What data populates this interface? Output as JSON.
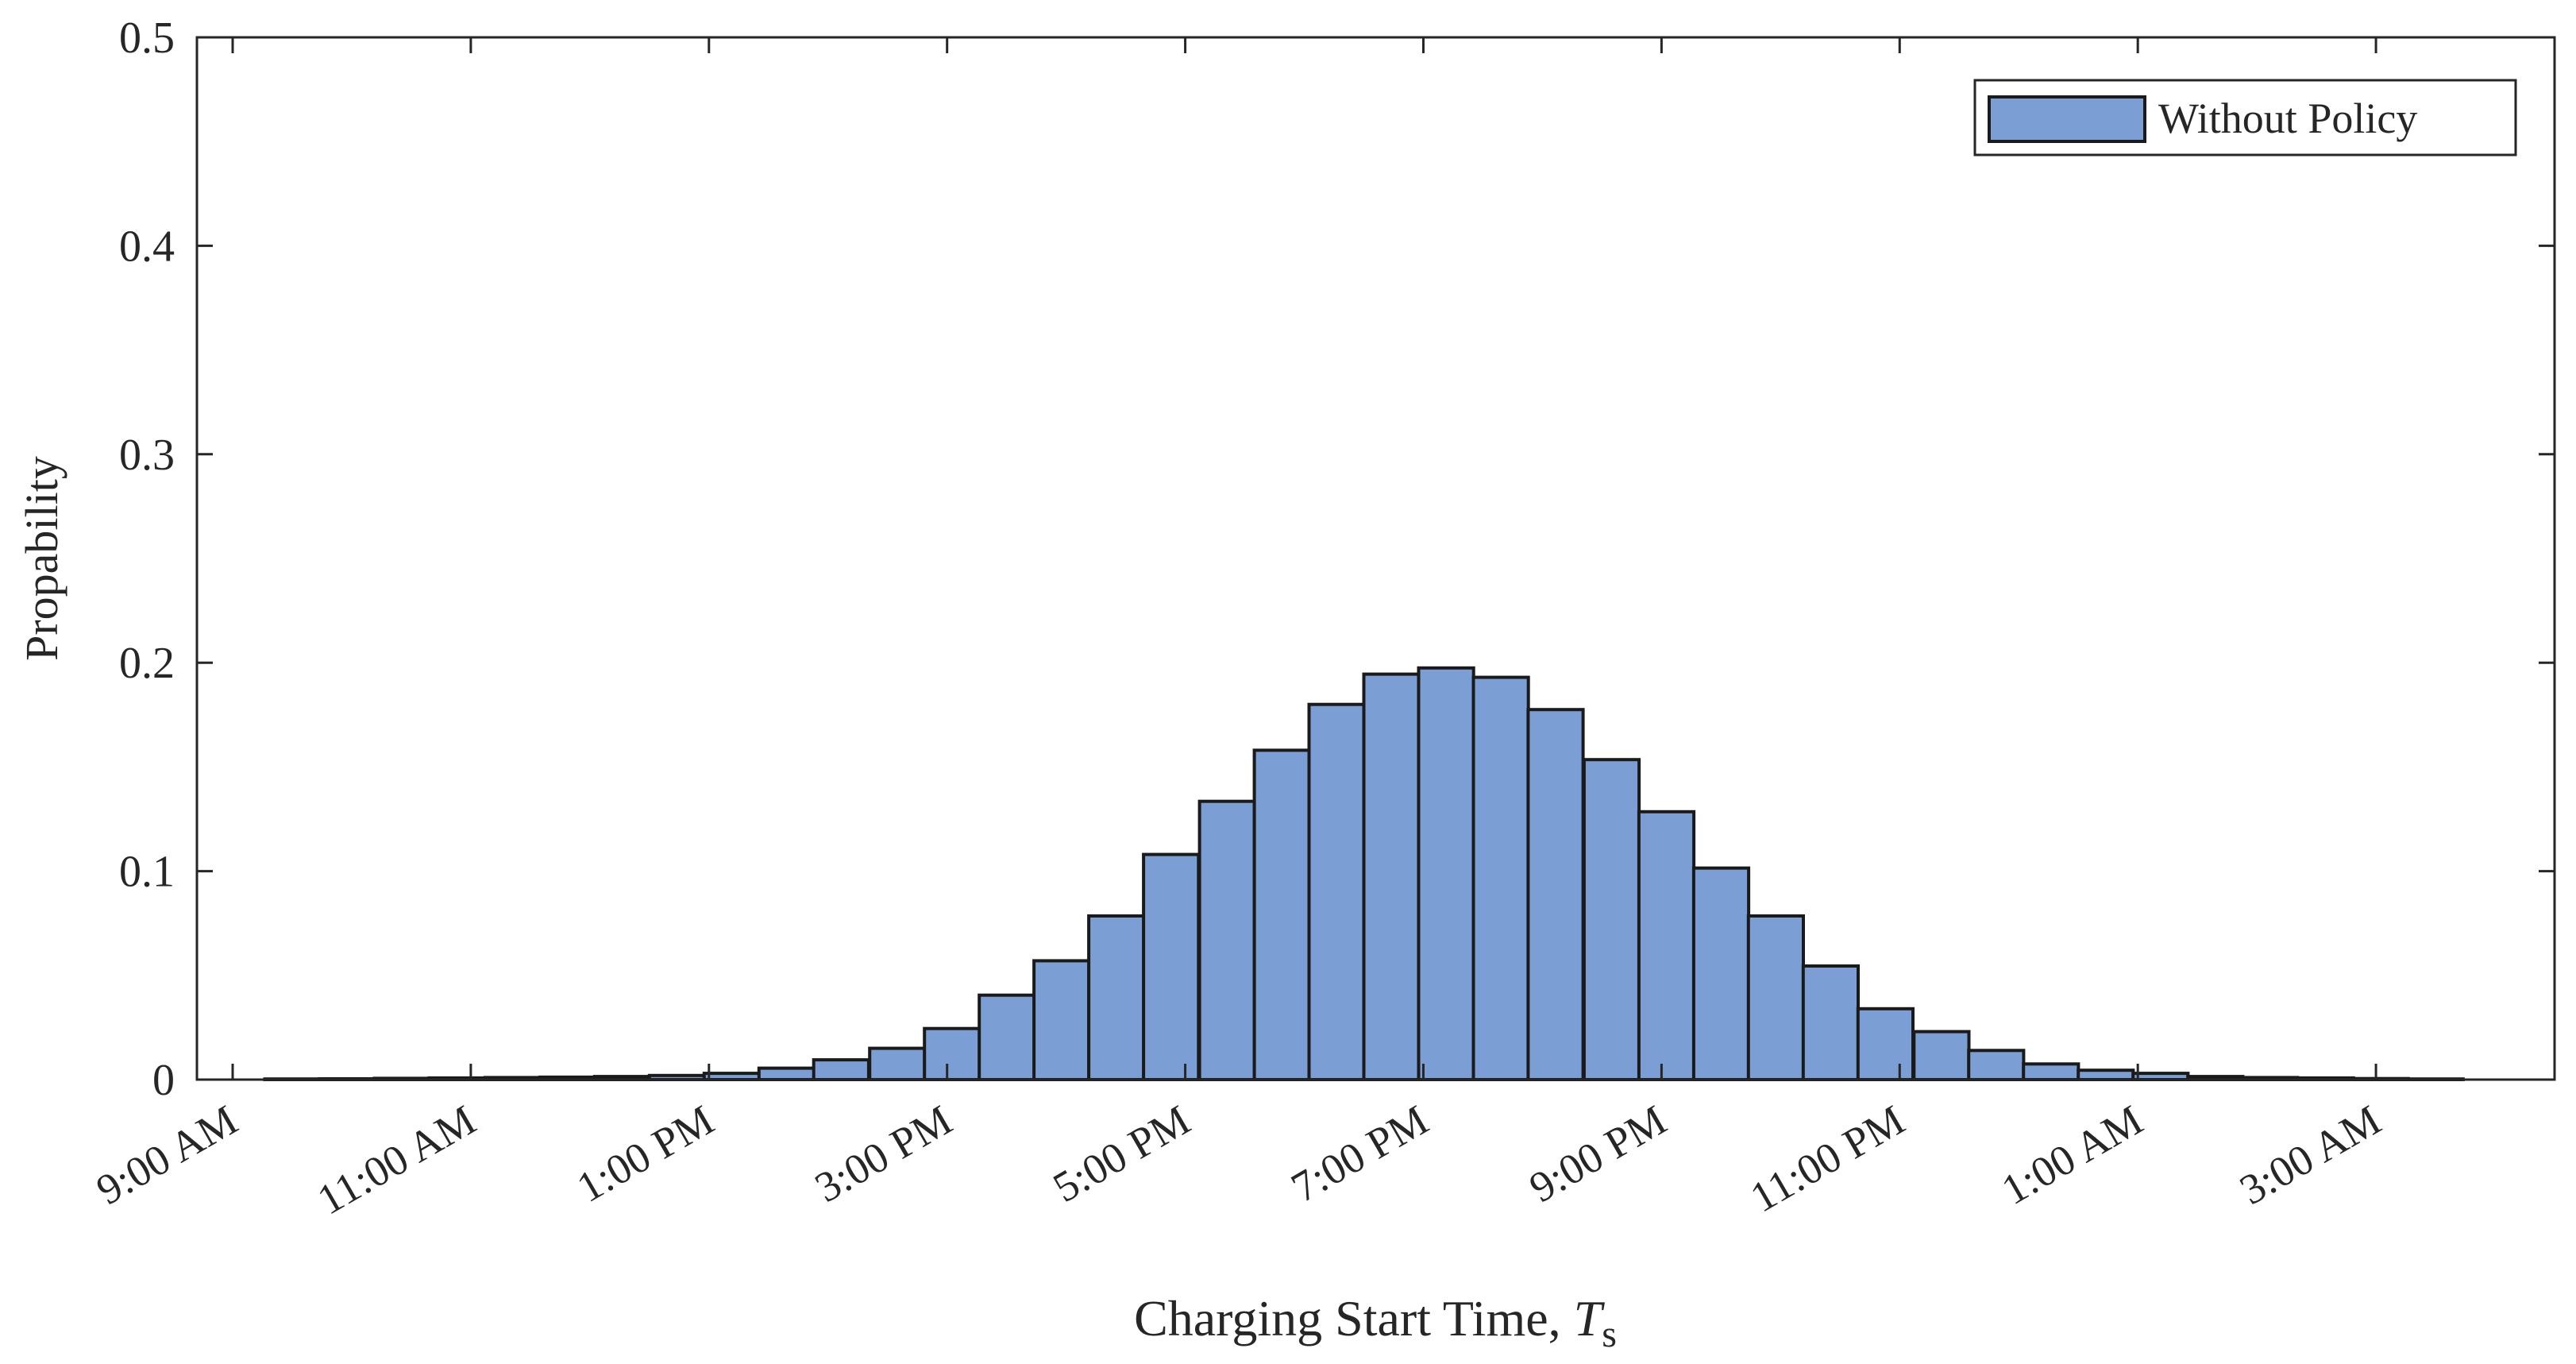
{
  "chart_data": {
    "type": "bar",
    "title": "",
    "xlabel": "Charging Start Time, ",
    "xlabel_symbol": "T",
    "xlabel_subscript": "s",
    "ylabel": "Propability",
    "xlim_hours": [
      8.7,
      28.5
    ],
    "ylim": [
      0,
      0.5
    ],
    "yticks": [
      0,
      0.1,
      0.2,
      0.3,
      0.4,
      0.5
    ],
    "ytick_labels": [
      "0",
      "0.1",
      "0.2",
      "0.3",
      "0.4",
      "0.5"
    ],
    "xticks_hours": [
      9,
      11,
      13,
      15,
      17,
      19,
      21,
      23,
      25,
      27
    ],
    "xtick_labels": [
      "9:00 AM",
      "11:00 AM",
      "1:00 PM",
      "3:00 PM",
      "5:00 PM",
      "7:00 PM",
      "9:00 PM",
      "11:00 PM",
      "1:00 AM",
      "3:00 AM"
    ],
    "grid": false,
    "legend_position": "top-right",
    "bar_color": "#7b9fd4",
    "edge_color": "#1a1a1a",
    "series": [
      {
        "name": "Without Policy",
        "bin_width_hours": 0.4615,
        "bin_starts_hours": [
          9.27,
          9.73,
          10.19,
          10.65,
          11.12,
          11.58,
          12.04,
          12.5,
          12.96,
          13.42,
          13.88,
          14.35,
          14.81,
          15.27,
          15.73,
          16.19,
          16.65,
          17.12,
          17.58,
          18.04,
          18.5,
          18.96,
          19.42,
          19.88,
          20.35,
          20.81,
          21.27,
          21.73,
          22.19,
          22.65,
          23.12,
          23.58,
          24.04,
          24.5,
          24.96,
          25.42,
          25.88,
          26.35,
          26.81,
          27.27
        ],
        "values": [
          0.0003,
          0.0004,
          0.0006,
          0.0008,
          0.001,
          0.0012,
          0.0015,
          0.002,
          0.003,
          0.0055,
          0.0095,
          0.015,
          0.0245,
          0.0405,
          0.057,
          0.0785,
          0.108,
          0.1335,
          0.158,
          0.18,
          0.1945,
          0.1975,
          0.193,
          0.1775,
          0.1535,
          0.1285,
          0.1015,
          0.0785,
          0.0545,
          0.034,
          0.023,
          0.014,
          0.0075,
          0.0045,
          0.003,
          0.0015,
          0.001,
          0.0008,
          0.0005,
          0.0003
        ]
      }
    ]
  }
}
